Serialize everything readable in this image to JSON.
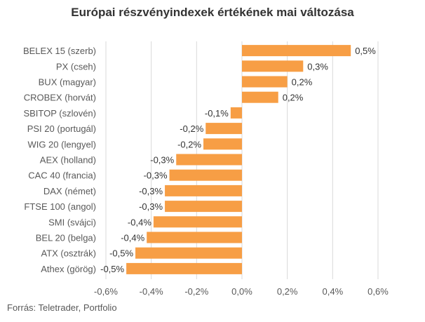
{
  "chart_data": {
    "type": "bar",
    "orientation": "horizontal",
    "title": "Európai részvényindexek értékének mai változása",
    "categories": [
      "BELEX 15 (szerb)",
      "PX (cseh)",
      "BUX (magyar)",
      "CROBEX (horvát)",
      "SBITOP (szlovén)",
      "PSI 20 (portugál)",
      "WIG 20 (lengyel)",
      "AEX (holland)",
      "CAC 40 (francia)",
      "DAX (német)",
      "FTSE 100 (angol)",
      "SMI (svájci)",
      "BEL 20 (belga)",
      "ATX (osztrák)",
      "Athex (görög)"
    ],
    "values": [
      0.48,
      0.27,
      0.2,
      0.16,
      -0.05,
      -0.16,
      -0.17,
      -0.29,
      -0.32,
      -0.34,
      -0.34,
      -0.39,
      -0.42,
      -0.47,
      -0.51
    ],
    "data_labels": [
      "0,5%",
      "0,3%",
      "0,2%",
      "0,2%",
      "-0,1%",
      "-0,2%",
      "-0,2%",
      "-0,3%",
      "-0,3%",
      "-0,3%",
      "-0,3%",
      "-0,4%",
      "-0,4%",
      "-0,5%",
      "-0,5%"
    ],
    "xlim": [
      -0.6,
      0.6
    ],
    "xticks": [
      -0.6,
      -0.4,
      -0.2,
      0,
      0.2,
      0.4,
      0.6
    ],
    "xtick_labels": [
      "-0,6%",
      "-0,4%",
      "-0,2%",
      "0,0%",
      "0,2%",
      "0,4%",
      "0,6%"
    ],
    "grid": "vertical",
    "bar_color": "#F79E45",
    "source": "Forrás: Teletrader, Portfolio"
  }
}
